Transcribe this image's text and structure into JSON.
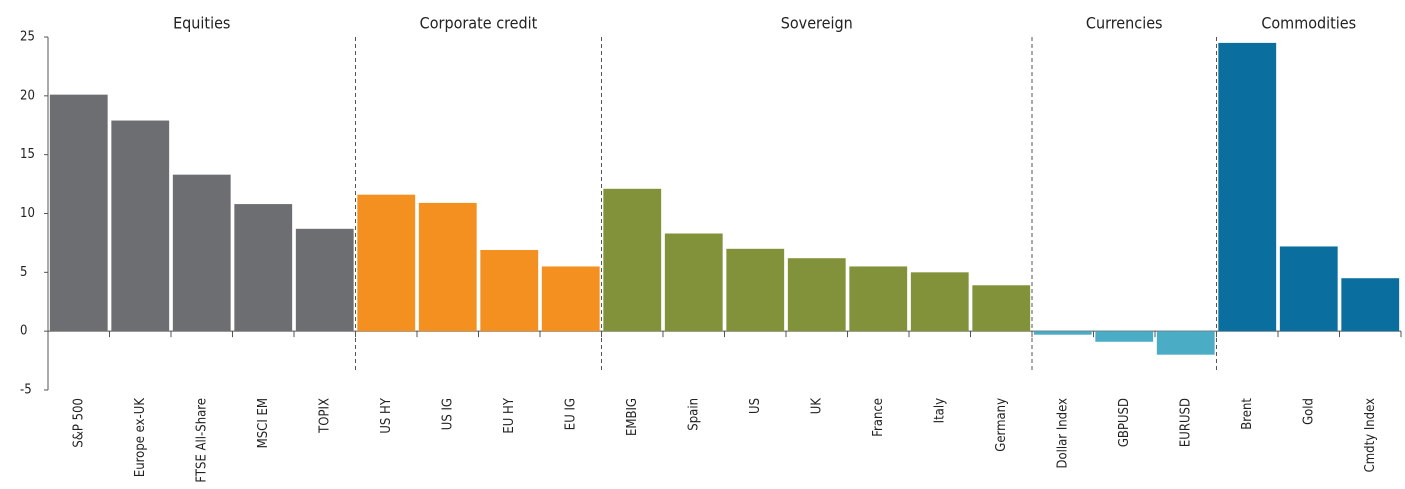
{
  "chart_data": {
    "type": "bar",
    "categories": [
      "S&P 500",
      "Europe ex-UK",
      "FTSE All-Share",
      "MSCI EM",
      "TOPIX",
      "US HY",
      "US IG",
      "EU HY",
      "EU IG",
      "EMBIG",
      "Spain",
      "US",
      "UK",
      "France",
      "Italy",
      "Germany",
      "Dollar Index",
      "GBPUSD",
      "EURUSD",
      "Brent",
      "Gold",
      "Cmdty Index"
    ],
    "series": [
      {
        "name": "Equities",
        "color": "#6d6e71",
        "values": [
          20.1,
          17.9,
          13.3,
          10.8,
          8.7,
          null,
          null,
          null,
          null,
          null,
          null,
          null,
          null,
          null,
          null,
          null,
          null,
          null,
          null,
          null,
          null,
          null
        ]
      },
      {
        "name": "Corporate credit",
        "color": "#f39020",
        "values": [
          null,
          null,
          null,
          null,
          null,
          11.6,
          10.9,
          6.9,
          5.5,
          null,
          null,
          null,
          null,
          null,
          null,
          null,
          null,
          null,
          null,
          null,
          null,
          null
        ]
      },
      {
        "name": "Sovereign",
        "color": "#82923a",
        "values": [
          null,
          null,
          null,
          null,
          null,
          null,
          null,
          null,
          null,
          12.1,
          8.3,
          7.0,
          6.2,
          5.5,
          5.0,
          3.9,
          null,
          null,
          null,
          null,
          null,
          null
        ]
      },
      {
        "name": "Currencies",
        "color": "#4bacc6",
        "values": [
          null,
          null,
          null,
          null,
          null,
          null,
          null,
          null,
          null,
          null,
          null,
          null,
          null,
          null,
          null,
          null,
          -0.3,
          -0.9,
          -2.0,
          null,
          null,
          null
        ]
      },
      {
        "name": "Commodities",
        "color": "#0a6e9e",
        "values": [
          null,
          null,
          null,
          null,
          null,
          null,
          null,
          null,
          null,
          null,
          null,
          null,
          null,
          null,
          null,
          null,
          null,
          null,
          null,
          24.5,
          7.2,
          4.5
        ]
      }
    ],
    "ylim": [
      -5,
      25
    ],
    "yticks": [
      -5,
      0,
      5,
      10,
      15,
      20,
      25
    ],
    "grid": false
  }
}
